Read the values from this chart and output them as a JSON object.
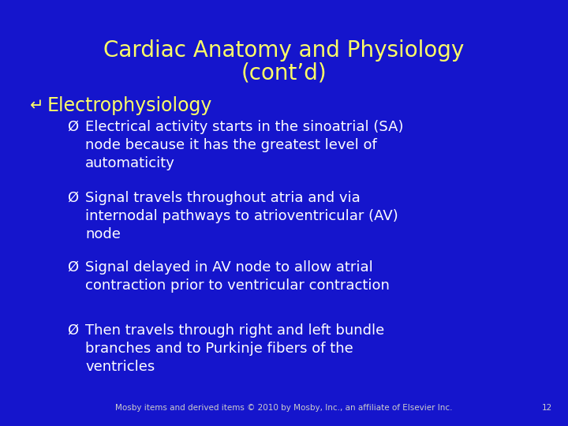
{
  "background_color": "#1515cc",
  "title_line1": "Cardiac Anatomy and Physiology",
  "title_line2": "(cont’d)",
  "title_color": "#ffff66",
  "title_fontsize": 20,
  "bullet1_text": "Electrophysiology",
  "bullet1_color": "#ffff66",
  "bullet1_fontsize": 17,
  "sub_bullets": [
    "Electrical activity starts in the sinoatrial (SA)\nnode because it has the greatest level of\nautomaticity",
    "Signal travels throughout atria and via\ninternodal pathways to atrioventricular (AV)\nnode",
    "Signal delayed in AV node to allow atrial\ncontraction prior to ventricular contraction",
    "Then travels through right and left bundle\nbranches and to Purkinje fibers of the\nventricles"
  ],
  "sub_bullet_color": "#ffffff",
  "sub_bullet_fontsize": 13,
  "footer_text": "Mosby items and derived items © 2010 by Mosby, Inc., an affiliate of Elsevier Inc.",
  "footer_page": "12",
  "footer_color": "#cccccc",
  "footer_fontsize": 7.5
}
